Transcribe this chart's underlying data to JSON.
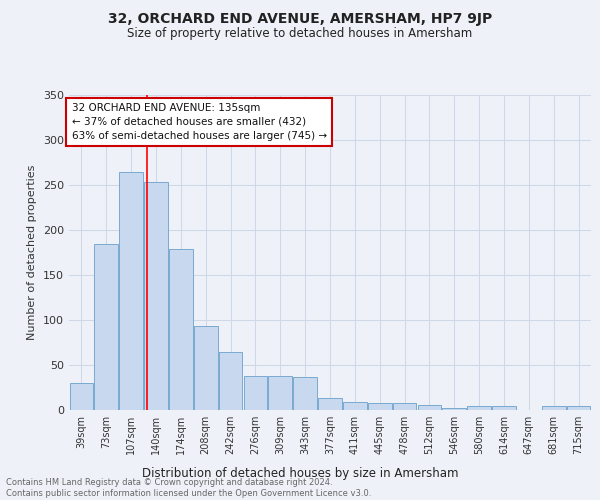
{
  "title": "32, ORCHARD END AVENUE, AMERSHAM, HP7 9JP",
  "subtitle": "Size of property relative to detached houses in Amersham",
  "xlabel": "Distribution of detached houses by size in Amersham",
  "ylabel": "Number of detached properties",
  "categories": [
    "39sqm",
    "73sqm",
    "107sqm",
    "140sqm",
    "174sqm",
    "208sqm",
    "242sqm",
    "276sqm",
    "309sqm",
    "343sqm",
    "377sqm",
    "411sqm",
    "445sqm",
    "478sqm",
    "512sqm",
    "546sqm",
    "580sqm",
    "614sqm",
    "647sqm",
    "681sqm",
    "715sqm"
  ],
  "values": [
    30,
    185,
    265,
    253,
    179,
    93,
    64,
    38,
    38,
    37,
    13,
    9,
    8,
    8,
    6,
    2,
    4,
    4,
    0,
    4,
    4
  ],
  "bar_color": "#c8d8ee",
  "bar_edge_color": "#7aaad0",
  "grid_color": "#d0d8e8",
  "background_color": "#eef2f8",
  "red_line_x": 2.62,
  "annotation_line1": "32 ORCHARD END AVENUE: 135sqm",
  "annotation_line2": "← 37% of detached houses are smaller (432)",
  "annotation_line3": "63% of semi-detached houses are larger (745) →",
  "annotation_box_color": "#ffffff",
  "annotation_box_edge": "#cc0000",
  "footer": "Contains HM Land Registry data © Crown copyright and database right 2024.\nContains public sector information licensed under the Open Government Licence v3.0.",
  "ylim": [
    0,
    350
  ],
  "yticks": [
    0,
    50,
    100,
    150,
    200,
    250,
    300,
    350
  ]
}
